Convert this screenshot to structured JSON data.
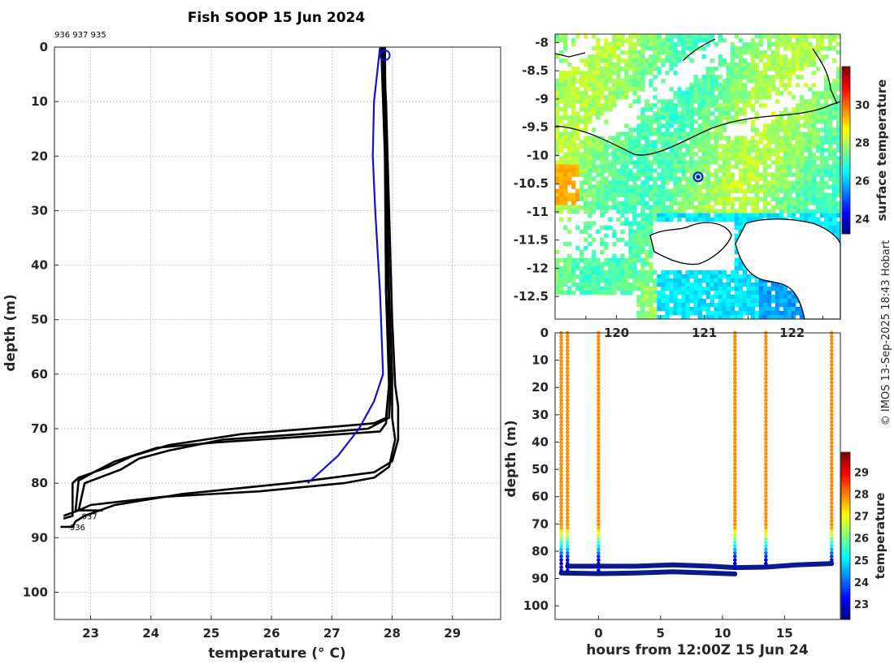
{
  "title": "Fish SOOP 15 Jun 2024",
  "credit": "© IMOS 13-Sep-2025 18:43 Hobart",
  "colors": {
    "profile": "#000000",
    "highlight": "#1010d8"
  },
  "chart_data": [
    {
      "type": "line",
      "name": "temperature profiles",
      "id_list_label": "936 937 935",
      "xlabel": "temperature (° C)",
      "ylabel": "depth (m)",
      "xlim": [
        22.4,
        29.8
      ],
      "ylim": [
        105,
        0
      ],
      "xticks": [
        23,
        24,
        25,
        26,
        27,
        28,
        29
      ],
      "yticks": [
        0,
        10,
        20,
        30,
        40,
        50,
        60,
        70,
        80,
        90,
        100
      ],
      "grid": true,
      "end_labels": [
        {
          "text": "937",
          "x": 22.8,
          "y": 86
        },
        {
          "text": "936",
          "x": 22.6,
          "y": 88
        }
      ],
      "latest_marker": {
        "x": 27.88,
        "y": 1.5
      },
      "series": [
        {
          "name": "936 a",
          "color": "#000000",
          "points": [
            [
              27.85,
              0
            ],
            [
              27.9,
              10
            ],
            [
              27.95,
              30
            ],
            [
              28.0,
              50
            ],
            [
              28.05,
              62
            ],
            [
              28.1,
              66
            ],
            [
              28.1,
              72
            ],
            [
              28.0,
              76
            ],
            [
              27.7,
              78
            ],
            [
              26.3,
              80
            ],
            [
              24.5,
              82
            ],
            [
              23.4,
              84
            ],
            [
              22.9,
              86
            ],
            [
              22.75,
              87
            ],
            [
              22.7,
              88
            ],
            [
              22.5,
              88
            ]
          ]
        },
        {
          "name": "936 b",
          "color": "#000000",
          "points": [
            [
              27.85,
              0
            ],
            [
              27.9,
              20
            ],
            [
              27.95,
              45
            ],
            [
              28.0,
              60
            ],
            [
              28.0,
              68
            ],
            [
              28.05,
              72
            ],
            [
              27.95,
              77
            ],
            [
              27.7,
              79
            ],
            [
              27.2,
              80
            ],
            [
              25.8,
              81.5
            ],
            [
              24.2,
              82.5
            ],
            [
              23.0,
              84
            ],
            [
              22.8,
              85
            ]
          ]
        },
        {
          "name": "937 a",
          "color": "#000000",
          "points": [
            [
              27.82,
              0
            ],
            [
              27.88,
              20
            ],
            [
              27.9,
              45
            ],
            [
              27.95,
              62
            ],
            [
              27.9,
              68
            ],
            [
              27.7,
              69
            ],
            [
              27.2,
              69.5
            ],
            [
              25.5,
              71
            ],
            [
              24.3,
              73
            ],
            [
              23.7,
              75
            ],
            [
              23.3,
              77
            ],
            [
              22.8,
              79
            ],
            [
              22.7,
              80
            ],
            [
              22.7,
              86
            ],
            [
              22.55,
              86.5
            ]
          ]
        },
        {
          "name": "937 b",
          "color": "#000000",
          "points": [
            [
              27.85,
              0
            ],
            [
              27.92,
              20
            ],
            [
              27.9,
              45
            ],
            [
              27.98,
              62
            ],
            [
              27.95,
              68
            ],
            [
              27.6,
              70
            ],
            [
              26.5,
              71
            ],
            [
              25.2,
              72
            ],
            [
              24.3,
              74
            ],
            [
              23.8,
              75.5
            ],
            [
              23.5,
              77.5
            ],
            [
              22.9,
              80
            ],
            [
              22.8,
              85
            ],
            [
              22.55,
              86
            ]
          ]
        },
        {
          "name": "935",
          "color": "#000000",
          "points": [
            [
              27.88,
              0
            ],
            [
              27.9,
              25
            ],
            [
              27.95,
              50
            ],
            [
              27.95,
              62
            ],
            [
              27.9,
              69
            ],
            [
              27.8,
              70.5
            ],
            [
              26.5,
              71.5
            ],
            [
              25.1,
              72.5
            ],
            [
              24.1,
              73.5
            ],
            [
              23.4,
              76
            ],
            [
              23.05,
              78
            ],
            [
              22.8,
              79.5
            ],
            [
              22.75,
              85
            ],
            [
              23.2,
              85
            ]
          ]
        },
        {
          "name": "latest",
          "color": "#1010d8",
          "points": [
            [
              27.8,
              0
            ],
            [
              27.75,
              5
            ],
            [
              27.7,
              10
            ],
            [
              27.68,
              20
            ],
            [
              27.72,
              30
            ],
            [
              27.8,
              45
            ],
            [
              27.85,
              60
            ],
            [
              27.7,
              65
            ],
            [
              27.45,
              70
            ],
            [
              27.1,
              75
            ],
            [
              26.6,
              80
            ]
          ]
        }
      ]
    },
    {
      "type": "heatmap",
      "name": "surface temperature map",
      "xlim": [
        119.3,
        122.55
      ],
      "ylim": [
        -12.9,
        -7.85
      ],
      "xticks": [
        120,
        121,
        122
      ],
      "xtick_labels": [
        "120",
        "121",
        "122"
      ],
      "xticks_minor_shown": [
        119.65,
        120.5,
        121.5,
        122.35
      ],
      "yticks": [
        -8,
        -8.5,
        -9,
        -9.5,
        -10,
        -10.5,
        -11,
        -11.5,
        -12,
        -12.5
      ],
      "colorbar": {
        "label": "surface temperature",
        "min": 23.2,
        "max": 32.0,
        "ticks": [
          24,
          26,
          28,
          30
        ]
      },
      "marker": {
        "lon": 120.93,
        "lat": -10.38
      }
    },
    {
      "type": "scatter",
      "name": "depth vs time temperature",
      "xlabel": "hours from 12:00Z 15 Jun 24",
      "ylabel": "depth (m)",
      "xlim": [
        -3.5,
        19.5
      ],
      "ylim": [
        105,
        0
      ],
      "xticks": [
        0,
        5,
        10,
        15
      ],
      "yticks": [
        0,
        10,
        20,
        30,
        40,
        50,
        60,
        70,
        80,
        90,
        100
      ],
      "colorbar": {
        "label": "temperature",
        "min": 22.3,
        "max": 29.9,
        "ticks": [
          23,
          24,
          25,
          26,
          27,
          28,
          29
        ]
      },
      "casts": [
        {
          "hour": -3.0,
          "bottom": 88
        },
        {
          "hour": -2.5,
          "bottom": 88
        },
        {
          "hour": 0.0,
          "bottom": 88
        },
        {
          "hour": 11.0,
          "bottom": 86
        },
        {
          "hour": 13.5,
          "bottom": 85
        },
        {
          "hour": 18.8,
          "bottom": 84
        }
      ],
      "bottom_tracks": [
        {
          "points": [
            [
              -3.0,
              88
            ],
            [
              0,
              88.2
            ],
            [
              3,
              88
            ],
            [
              6,
              87.5
            ],
            [
              9,
              88
            ],
            [
              11,
              88.3
            ]
          ]
        },
        {
          "points": [
            [
              -2.5,
              85.5
            ],
            [
              0,
              85.5
            ],
            [
              3,
              85.5
            ],
            [
              6,
              85
            ],
            [
              9,
              85.5
            ],
            [
              11,
              86
            ],
            [
              13.5,
              85.8
            ],
            [
              16,
              85
            ],
            [
              18.8,
              84.5
            ]
          ]
        }
      ],
      "cast_profile": {
        "thermocline_top": 71,
        "cold_from": 84,
        "warm_temp": 27.9,
        "cold_temp": 22.8
      }
    }
  ]
}
